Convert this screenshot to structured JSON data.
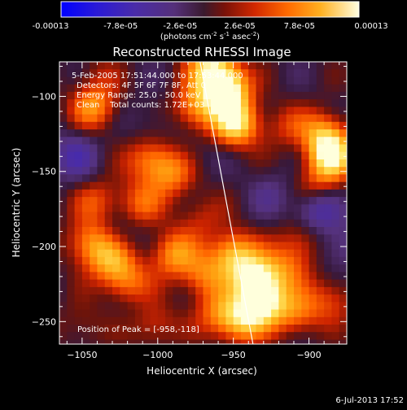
{
  "colorbar": {
    "ticks": [
      "-0.00013",
      "-7.8e-05",
      "-2.6e-05",
      "2.6e-05",
      "7.8e-05",
      "0.00013"
    ],
    "units_line": "(photons cm",
    "units_sup1": "-2",
    "units_mid": " s",
    "units_sup2": "-1",
    "units_end": " asec",
    "units_sup3": "-2",
    "units_close": ")"
  },
  "annotations": [
    "5-Feb-2005 17:51:44.000 to 17:53:44.000",
    "Detectors: 4F 5F 6F 7F 8F, Att 0",
    "Energy Range: 25.0 - 50.0 keV",
    "Clean    Total counts: 1.72E+03"
  ],
  "peak_text": "Position of Peak = [-958,-118]",
  "footer_timestamp": "6-Jul-2013 17:52",
  "colors": {
    "background": "#000000",
    "colormap": [
      "#0000ff",
      "#3c2cc8",
      "#5a3aa0",
      "#4a2c6e",
      "#3a1a3a",
      "#8a1a0a",
      "#e63a00",
      "#ff8c00",
      "#ffd23c",
      "#ffffc8"
    ]
  },
  "chart_data": {
    "type": "heatmap",
    "title": "Reconstructed RHESSI Image",
    "xlabel": "Heliocentric X (arcsec)",
    "ylabel": "Heliocentric Y (arcsec)",
    "xlim": [
      -1065,
      -875
    ],
    "ylim": [
      -265,
      -77
    ],
    "x_ticks": [
      -1050,
      -1000,
      -950,
      -900
    ],
    "y_ticks": [
      -100,
      -150,
      -200,
      -250
    ],
    "colorbar_range": [
      -0.00013,
      0.00013
    ],
    "peak": [
      -958,
      -118
    ],
    "limb_line": [
      [
        -972,
        -77
      ],
      [
        -937,
        -265
      ]
    ],
    "sources": [
      {
        "x": -955,
        "y": -95,
        "v": 1.0
      },
      {
        "x": -948,
        "y": -118,
        "v": 0.85
      },
      {
        "x": -965,
        "y": -80,
        "v": 0.7
      },
      {
        "x": -975,
        "y": -108,
        "v": 0.55
      },
      {
        "x": -1042,
        "y": -107,
        "v": 0.55
      },
      {
        "x": -1005,
        "y": -142,
        "v": 0.5
      },
      {
        "x": -990,
        "y": -152,
        "v": 0.45
      },
      {
        "x": -1012,
        "y": -172,
        "v": 0.4
      },
      {
        "x": -1040,
        "y": -170,
        "v": 0.35
      },
      {
        "x": -1045,
        "y": -198,
        "v": 0.55
      },
      {
        "x": -1030,
        "y": -210,
        "v": 0.5
      },
      {
        "x": -1020,
        "y": -225,
        "v": 0.45
      },
      {
        "x": -990,
        "y": -205,
        "v": 0.55
      },
      {
        "x": -970,
        "y": -220,
        "v": 0.45
      },
      {
        "x": -950,
        "y": -205,
        "v": 0.7
      },
      {
        "x": -935,
        "y": -222,
        "v": 0.85
      },
      {
        "x": -930,
        "y": -238,
        "v": 0.75
      },
      {
        "x": -945,
        "y": -250,
        "v": 0.6
      },
      {
        "x": -960,
        "y": -245,
        "v": 0.4
      },
      {
        "x": -915,
        "y": -215,
        "v": 0.35
      },
      {
        "x": -905,
        "y": -197,
        "v": 0.35
      },
      {
        "x": -885,
        "y": -140,
        "v": 0.8
      },
      {
        "x": -890,
        "y": -125,
        "v": 0.55
      },
      {
        "x": -895,
        "y": -160,
        "v": 0.35
      },
      {
        "x": -908,
        "y": -245,
        "v": 0.45
      },
      {
        "x": -885,
        "y": -235,
        "v": 0.35
      },
      {
        "x": -1003,
        "y": -252,
        "v": 0.35
      },
      {
        "x": -1050,
        "y": -253,
        "v": 0.2
      },
      {
        "x": -915,
        "y": -120,
        "v": 0.25
      },
      {
        "x": -972,
        "y": -180,
        "v": 0.25
      },
      {
        "x": -1040,
        "y": -85,
        "v": 0.15
      },
      {
        "x": -1055,
        "y": -140,
        "v": -0.4
      },
      {
        "x": -895,
        "y": -175,
        "v": -0.5
      },
      {
        "x": -925,
        "y": -165,
        "v": -0.2
      },
      {
        "x": -1025,
        "y": -190,
        "v": -0.15
      },
      {
        "x": -1003,
        "y": -118,
        "v": -0.15
      },
      {
        "x": -975,
        "y": -140,
        "v": -0.1
      },
      {
        "x": -880,
        "y": -200,
        "v": -0.3
      },
      {
        "x": -1015,
        "y": -240,
        "v": -0.1
      }
    ]
  }
}
